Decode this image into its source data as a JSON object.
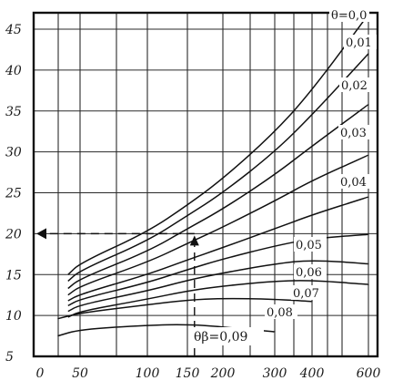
{
  "chart_data": {
    "type": "line",
    "title": "",
    "xlabel": "",
    "ylabel": "",
    "x_scale": "log",
    "x_ticks": [
      "0",
      "50",
      "100",
      "150",
      "200",
      "300",
      "400",
      "600"
    ],
    "y_ticks": [
      "5",
      "10",
      "15",
      "20",
      "25",
      "30",
      "35",
      "40",
      "45"
    ],
    "ylim": [
      5,
      47
    ],
    "grid": true,
    "series": [
      {
        "name": "θ=0,0",
        "points": [
          [
            35,
            15.0
          ],
          [
            50,
            16.4
          ],
          [
            100,
            20.2
          ],
          [
            150,
            23.5
          ],
          [
            200,
            26.7
          ],
          [
            300,
            32.4
          ],
          [
            400,
            37.5
          ],
          [
            600,
            46.8
          ]
        ]
      },
      {
        "name": "0,01",
        "points": [
          [
            35,
            14.2
          ],
          [
            50,
            15.5
          ],
          [
            100,
            19.1
          ],
          [
            150,
            22.2
          ],
          [
            200,
            25.0
          ],
          [
            300,
            30.0
          ],
          [
            400,
            34.5
          ],
          [
            600,
            42.0
          ]
        ]
      },
      {
        "name": "0,02",
        "points": [
          [
            35,
            13.3
          ],
          [
            50,
            14.5
          ],
          [
            100,
            17.8
          ],
          [
            150,
            20.6
          ],
          [
            200,
            23.0
          ],
          [
            300,
            27.2
          ],
          [
            400,
            30.7
          ],
          [
            600,
            35.8
          ]
        ]
      },
      {
        "name": "0,03",
        "points": [
          [
            35,
            12.5
          ],
          [
            50,
            13.6
          ],
          [
            100,
            16.5
          ],
          [
            150,
            18.8
          ],
          [
            200,
            20.8
          ],
          [
            300,
            24.0
          ],
          [
            400,
            26.5
          ],
          [
            600,
            29.6
          ]
        ]
      },
      {
        "name": "0,04",
        "points": [
          [
            35,
            11.8
          ],
          [
            50,
            12.6
          ],
          [
            100,
            15.0
          ],
          [
            150,
            16.8
          ],
          [
            200,
            18.3
          ],
          [
            300,
            20.6
          ],
          [
            400,
            22.3
          ],
          [
            600,
            24.5
          ]
        ]
      },
      {
        "name": "0,05",
        "points": [
          [
            35,
            11.2
          ],
          [
            50,
            12.0
          ],
          [
            100,
            14.0
          ],
          [
            150,
            15.6
          ],
          [
            200,
            16.9
          ],
          [
            300,
            18.5
          ],
          [
            400,
            19.4
          ],
          [
            600,
            19.9
          ]
        ]
      },
      {
        "name": "0,06",
        "points": [
          [
            35,
            10.5
          ],
          [
            50,
            11.3
          ],
          [
            100,
            13.0
          ],
          [
            150,
            14.3
          ],
          [
            200,
            15.2
          ],
          [
            300,
            16.3
          ],
          [
            400,
            16.8
          ],
          [
            600,
            16.3
          ]
        ]
      },
      {
        "name": "0,07",
        "points": [
          [
            35,
            9.8
          ],
          [
            50,
            10.5
          ],
          [
            100,
            12.0
          ],
          [
            150,
            13.0
          ],
          [
            200,
            13.6
          ],
          [
            300,
            14.2
          ],
          [
            400,
            14.3
          ],
          [
            600,
            13.8
          ]
        ]
      },
      {
        "name": "0,08",
        "points": [
          [
            22,
            9.6
          ],
          [
            50,
            10.3
          ],
          [
            100,
            11.3
          ],
          [
            150,
            11.9
          ],
          [
            200,
            12.1
          ],
          [
            300,
            12.0
          ],
          [
            400,
            11.7
          ]
        ]
      },
      {
        "name": "θβ=0,09",
        "points": [
          [
            22,
            7.5
          ],
          [
            50,
            8.3
          ],
          [
            100,
            8.8
          ],
          [
            150,
            8.9
          ],
          [
            200,
            8.6
          ],
          [
            300,
            8.0
          ]
        ]
      }
    ],
    "annotation": {
      "label": "θβ=0,09",
      "x": 160,
      "y": 20,
      "arrow_to": "y-axis"
    }
  },
  "text": {
    "x_ticks": [
      "0",
      "50",
      "100",
      "150",
      "200",
      "300",
      "400",
      "600"
    ],
    "y_ticks": [
      "5",
      "10",
      "15",
      "20",
      "25",
      "30",
      "35",
      "40",
      "45"
    ],
    "curve_labels": [
      "θ=0,0",
      "0,01",
      "0,02",
      "0,03",
      "0,04",
      "0,05",
      "0,06",
      "0,07",
      "0,08"
    ],
    "annotation_label": "θβ=0,09"
  }
}
